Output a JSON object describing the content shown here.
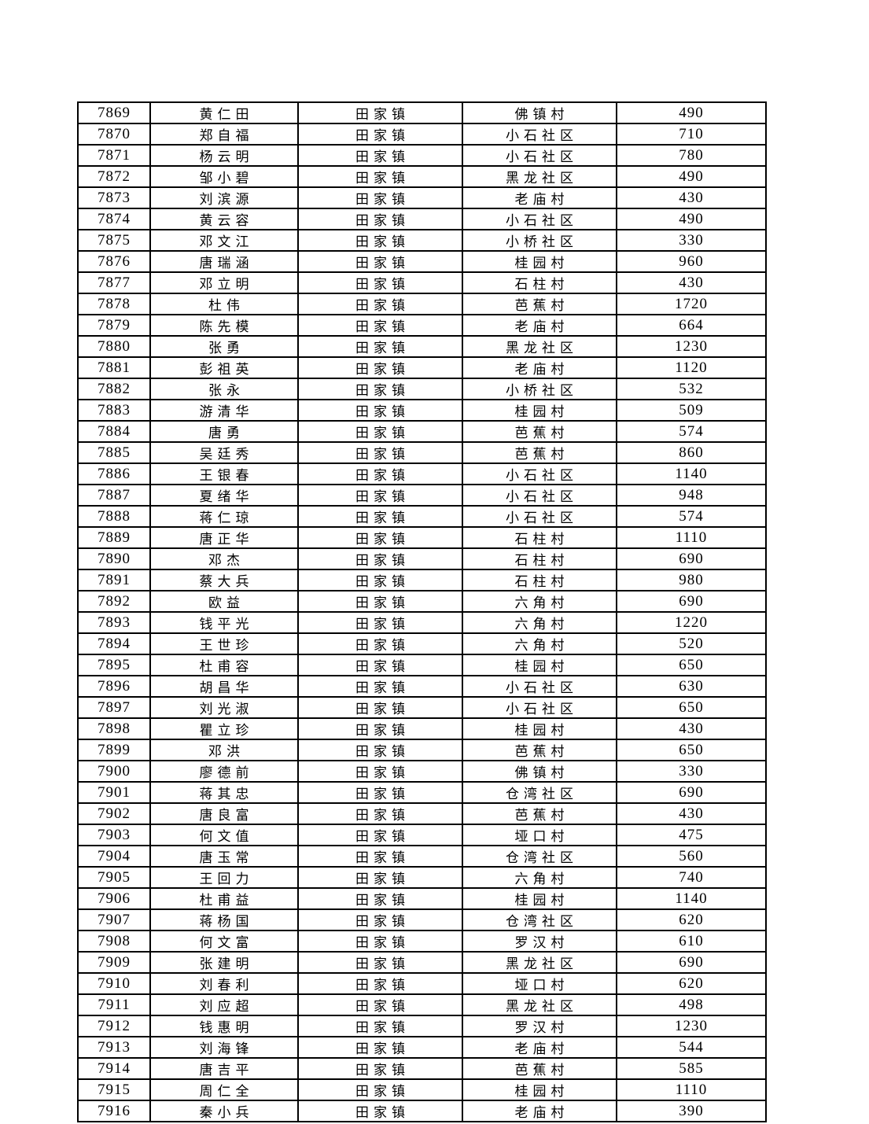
{
  "table": {
    "columns": [
      "serial_number",
      "name",
      "town",
      "village",
      "amount"
    ],
    "rows": [
      [
        "7869",
        "黄仁田",
        "田家镇",
        "佛镇村",
        "490"
      ],
      [
        "7870",
        "郑自福",
        "田家镇",
        "小石社区",
        "710"
      ],
      [
        "7871",
        "杨云明",
        "田家镇",
        "小石社区",
        "780"
      ],
      [
        "7872",
        "邹小碧",
        "田家镇",
        "黑龙社区",
        "490"
      ],
      [
        "7873",
        "刘滨源",
        "田家镇",
        "老庙村",
        "430"
      ],
      [
        "7874",
        "黄云容",
        "田家镇",
        "小石社区",
        "490"
      ],
      [
        "7875",
        "邓文江",
        "田家镇",
        "小桥社区",
        "330"
      ],
      [
        "7876",
        "唐瑞涵",
        "田家镇",
        "桂园村",
        "960"
      ],
      [
        "7877",
        "邓立明",
        "田家镇",
        "石柱村",
        "430"
      ],
      [
        "7878",
        "杜伟",
        "田家镇",
        "芭蕉村",
        "1720"
      ],
      [
        "7879",
        "陈先模",
        "田家镇",
        "老庙村",
        "664"
      ],
      [
        "7880",
        "张勇",
        "田家镇",
        "黑龙社区",
        "1230"
      ],
      [
        "7881",
        "彭祖英",
        "田家镇",
        "老庙村",
        "1120"
      ],
      [
        "7882",
        "张永",
        "田家镇",
        "小桥社区",
        "532"
      ],
      [
        "7883",
        "游清华",
        "田家镇",
        "桂园村",
        "509"
      ],
      [
        "7884",
        "唐勇",
        "田家镇",
        "芭蕉村",
        "574"
      ],
      [
        "7885",
        "吴廷秀",
        "田家镇",
        "芭蕉村",
        "860"
      ],
      [
        "7886",
        "王银春",
        "田家镇",
        "小石社区",
        "1140"
      ],
      [
        "7887",
        "夏绪华",
        "田家镇",
        "小石社区",
        "948"
      ],
      [
        "7888",
        "蒋仁琼",
        "田家镇",
        "小石社区",
        "574"
      ],
      [
        "7889",
        "唐正华",
        "田家镇",
        "石柱村",
        "1110"
      ],
      [
        "7890",
        "邓杰",
        "田家镇",
        "石柱村",
        "690"
      ],
      [
        "7891",
        "蔡大兵",
        "田家镇",
        "石柱村",
        "980"
      ],
      [
        "7892",
        "欧益",
        "田家镇",
        "六角村",
        "690"
      ],
      [
        "7893",
        "钱平光",
        "田家镇",
        "六角村",
        "1220"
      ],
      [
        "7894",
        "王世珍",
        "田家镇",
        "六角村",
        "520"
      ],
      [
        "7895",
        "杜甫容",
        "田家镇",
        "桂园村",
        "650"
      ],
      [
        "7896",
        "胡昌华",
        "田家镇",
        "小石社区",
        "630"
      ],
      [
        "7897",
        "刘光淑",
        "田家镇",
        "小石社区",
        "650"
      ],
      [
        "7898",
        "瞿立珍",
        "田家镇",
        "桂园村",
        "430"
      ],
      [
        "7899",
        "邓洪",
        "田家镇",
        "芭蕉村",
        "650"
      ],
      [
        "7900",
        "廖德前",
        "田家镇",
        "佛镇村",
        "330"
      ],
      [
        "7901",
        "蒋其忠",
        "田家镇",
        "仓湾社区",
        "690"
      ],
      [
        "7902",
        "唐良富",
        "田家镇",
        "芭蕉村",
        "430"
      ],
      [
        "7903",
        "何文值",
        "田家镇",
        "垭口村",
        "475"
      ],
      [
        "7904",
        "唐玉常",
        "田家镇",
        "仓湾社区",
        "560"
      ],
      [
        "7905",
        "王回力",
        "田家镇",
        "六角村",
        "740"
      ],
      [
        "7906",
        "杜甫益",
        "田家镇",
        "桂园村",
        "1140"
      ],
      [
        "7907",
        "蒋杨国",
        "田家镇",
        "仓湾社区",
        "620"
      ],
      [
        "7908",
        "何文富",
        "田家镇",
        "罗汉村",
        "610"
      ],
      [
        "7909",
        "张建明",
        "田家镇",
        "黑龙社区",
        "690"
      ],
      [
        "7910",
        "刘春利",
        "田家镇",
        "垭口村",
        "620"
      ],
      [
        "7911",
        "刘应超",
        "田家镇",
        "黑龙社区",
        "498"
      ],
      [
        "7912",
        "钱惠明",
        "田家镇",
        "罗汉村",
        "1230"
      ],
      [
        "7913",
        "刘海锋",
        "田家镇",
        "老庙村",
        "544"
      ],
      [
        "7914",
        "唐吉平",
        "田家镇",
        "芭蕉村",
        "585"
      ],
      [
        "7915",
        "周仁全",
        "田家镇",
        "桂园村",
        "1110"
      ],
      [
        "7916",
        "秦小兵",
        "田家镇",
        "老庙村",
        "390"
      ]
    ]
  }
}
